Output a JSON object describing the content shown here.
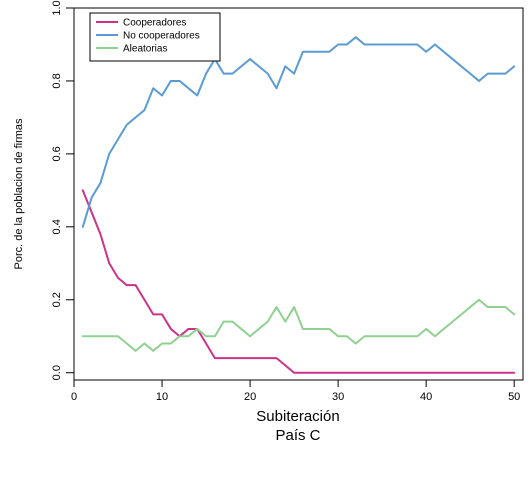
{
  "chart_data": {
    "type": "line",
    "xlabel": "Subiteración",
    "subtitle": "País C",
    "ylabel": "Porc. de la poblacion de firmas",
    "xlim": [
      0,
      51
    ],
    "ylim": [
      -0.02,
      1.0
    ],
    "xticks": [
      0,
      10,
      20,
      30,
      40,
      50
    ],
    "xtick_labels": [
      "0",
      "10",
      "20",
      "30",
      "40",
      "50"
    ],
    "yticks": [
      0.0,
      0.2,
      0.4,
      0.6,
      0.8,
      1.0
    ],
    "ytick_labels": [
      "0.0",
      "0.2",
      "0.4",
      "0.6",
      "0.8",
      "1.0"
    ],
    "grid": false,
    "legend_position": "top-left",
    "x": [
      1,
      2,
      3,
      4,
      5,
      6,
      7,
      8,
      9,
      10,
      11,
      12,
      13,
      14,
      15,
      16,
      17,
      18,
      19,
      20,
      21,
      22,
      23,
      24,
      25,
      26,
      27,
      28,
      29,
      30,
      31,
      32,
      33,
      34,
      35,
      36,
      37,
      38,
      39,
      40,
      41,
      42,
      43,
      44,
      45,
      46,
      47,
      48,
      49,
      50
    ],
    "series": [
      {
        "name": "Cooperadores",
        "color": "#cc3388",
        "values": [
          0.5,
          0.44,
          0.38,
          0.3,
          0.26,
          0.24,
          0.24,
          0.2,
          0.16,
          0.16,
          0.12,
          0.1,
          0.12,
          0.12,
          0.08,
          0.04,
          0.04,
          0.04,
          0.04,
          0.04,
          0.04,
          0.04,
          0.04,
          0.02,
          0.0,
          0.0,
          0.0,
          0.0,
          0.0,
          0.0,
          0.0,
          0.0,
          0.0,
          0.0,
          0.0,
          0.0,
          0.0,
          0.0,
          0.0,
          0.0,
          0.0,
          0.0,
          0.0,
          0.0,
          0.0,
          0.0,
          0.0,
          0.0,
          0.0,
          0.0
        ]
      },
      {
        "name": "No cooperadores",
        "color": "#5b9bd5",
        "values": [
          0.4,
          0.48,
          0.52,
          0.6,
          0.64,
          0.68,
          0.7,
          0.72,
          0.78,
          0.76,
          0.8,
          0.8,
          0.78,
          0.76,
          0.82,
          0.86,
          0.82,
          0.82,
          0.84,
          0.86,
          0.84,
          0.82,
          0.78,
          0.84,
          0.82,
          0.88,
          0.88,
          0.88,
          0.88,
          0.9,
          0.9,
          0.92,
          0.9,
          0.9,
          0.9,
          0.9,
          0.9,
          0.9,
          0.9,
          0.88,
          0.9,
          0.88,
          0.86,
          0.84,
          0.82,
          0.8,
          0.82,
          0.82,
          0.82,
          0.84
        ]
      },
      {
        "name": "Aleatorias",
        "color": "#8fd18f",
        "values": [
          0.1,
          0.1,
          0.1,
          0.1,
          0.1,
          0.08,
          0.06,
          0.08,
          0.06,
          0.08,
          0.08,
          0.1,
          0.1,
          0.12,
          0.1,
          0.1,
          0.14,
          0.14,
          0.12,
          0.1,
          0.12,
          0.14,
          0.18,
          0.14,
          0.18,
          0.12,
          0.12,
          0.12,
          0.12,
          0.1,
          0.1,
          0.08,
          0.1,
          0.1,
          0.1,
          0.1,
          0.1,
          0.1,
          0.1,
          0.12,
          0.1,
          0.12,
          0.14,
          0.16,
          0.18,
          0.2,
          0.18,
          0.18,
          0.18,
          0.16
        ]
      }
    ]
  }
}
